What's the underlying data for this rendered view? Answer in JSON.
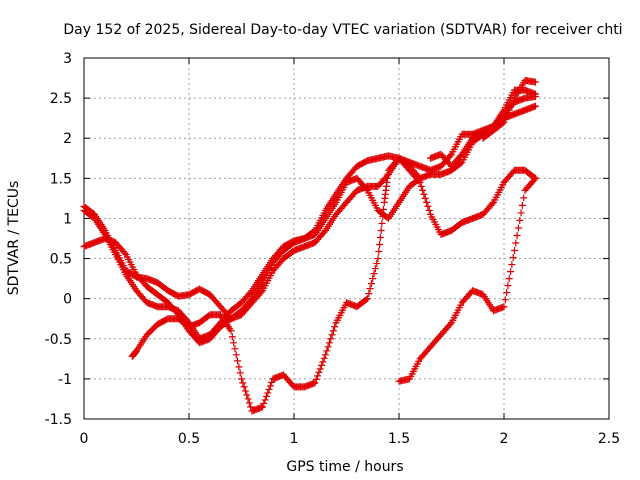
{
  "chart_data": {
    "type": "scatter",
    "title": "Day 152 of 2025, Sidereal Day-to-day VTEC variation (SDTVAR) for receiver chti",
    "xlabel": "GPS time / hours",
    "ylabel": "SDTVAR / TECUs",
    "xlim": [
      0,
      2.5
    ],
    "ylim": [
      -1.5,
      3
    ],
    "xticks": [
      "0",
      "0.5",
      "1",
      "1.5",
      "2",
      "2.5"
    ],
    "yticks": [
      "-1.5",
      "-1",
      "-0.5",
      "0",
      "0.5",
      "1",
      "1.5",
      "2",
      "2.5",
      "3"
    ],
    "grid": true,
    "marker": "+",
    "color": "#e00000",
    "series": [
      {
        "x": [
          0.0,
          0.05,
          0.1,
          0.15,
          0.2,
          0.25,
          0.3,
          0.35,
          0.4,
          0.45,
          0.5,
          0.55,
          0.6,
          0.65,
          0.7,
          0.75,
          0.8,
          0.85,
          0.9,
          0.95,
          1.0,
          1.05,
          1.1,
          1.15,
          1.2,
          1.25,
          1.3,
          1.35,
          1.4,
          1.45,
          1.5,
          1.55,
          1.6,
          1.65,
          1.7,
          1.75,
          1.8,
          1.85,
          1.9,
          1.95,
          2.0,
          2.05,
          2.1,
          2.15
        ],
        "y": [
          1.15,
          1.05,
          0.85,
          0.6,
          0.35,
          0.27,
          0.25,
          0.2,
          0.1,
          0.03,
          0.05,
          0.12,
          0.05,
          -0.1,
          -0.25,
          -0.15,
          0.0,
          0.2,
          0.45,
          0.6,
          0.7,
          0.75,
          0.85,
          1.1,
          1.3,
          1.5,
          1.65,
          1.72,
          1.75,
          1.78,
          1.75,
          1.7,
          1.65,
          1.6,
          1.65,
          1.8,
          2.05,
          2.05,
          2.1,
          2.15,
          2.25,
          2.3,
          2.35,
          2.4
        ]
      },
      {
        "x": [
          0.0,
          0.05,
          0.1,
          0.15,
          0.2,
          0.25,
          0.3,
          0.35,
          0.4,
          0.45,
          0.5,
          0.55,
          0.6,
          0.65,
          0.7,
          0.75,
          0.8,
          0.85,
          0.9,
          0.95,
          1.0,
          1.05,
          1.1,
          1.15,
          1.2,
          1.25,
          1.3,
          1.35,
          1.4,
          1.45,
          1.5,
          1.55,
          1.6,
          1.65,
          1.7,
          1.75,
          1.8,
          1.85,
          1.9,
          1.95,
          2.0,
          2.05,
          2.1,
          2.15
        ],
        "y": [
          1.1,
          1.0,
          0.8,
          0.55,
          0.3,
          0.1,
          -0.05,
          -0.1,
          -0.1,
          -0.15,
          -0.3,
          -0.5,
          -0.45,
          -0.3,
          -0.15,
          -0.05,
          0.1,
          0.3,
          0.5,
          0.65,
          0.72,
          0.75,
          0.8,
          1.0,
          1.2,
          1.45,
          1.5,
          1.35,
          1.1,
          1.0,
          1.2,
          1.4,
          1.5,
          1.55,
          1.55,
          1.6,
          1.7,
          1.95,
          2.05,
          2.15,
          2.35,
          2.6,
          2.6,
          2.55
        ]
      },
      {
        "x": [
          0.0,
          0.05,
          0.1,
          0.15,
          0.2,
          0.25,
          0.3,
          0.35,
          0.4,
          0.45,
          0.5,
          0.55,
          0.6,
          0.65,
          0.7,
          0.75,
          0.8,
          0.85,
          0.9,
          0.95,
          1.0,
          1.05,
          1.1,
          1.15,
          1.2,
          1.25,
          1.3,
          1.35,
          1.4,
          1.45,
          1.5,
          1.55,
          1.6,
          1.65,
          1.7,
          1.75,
          1.8,
          1.85,
          1.9,
          1.95,
          2.0,
          2.05,
          2.1,
          2.15
        ],
        "y": [
          0.65,
          0.7,
          0.75,
          0.7,
          0.55,
          0.3,
          0.15,
          0.05,
          -0.05,
          -0.2,
          -0.4,
          -0.55,
          -0.5,
          -0.35,
          -0.25,
          -0.2,
          -0.05,
          0.1,
          0.35,
          0.5,
          0.6,
          0.65,
          0.7,
          0.85,
          1.05,
          1.2,
          1.35,
          1.4,
          1.4,
          1.55,
          1.75,
          1.6,
          1.45,
          1.05,
          0.8,
          0.85,
          0.95,
          1.0,
          1.05,
          1.2,
          1.45,
          1.6,
          1.6,
          1.5
        ]
      },
      {
        "x": [
          0.23,
          0.25,
          0.3,
          0.35,
          0.4,
          0.45,
          0.5,
          0.55,
          0.6,
          0.65,
          0.7,
          0.75,
          0.8,
          0.85,
          0.9,
          0.95,
          1.0,
          1.05,
          1.1,
          1.15,
          1.2,
          1.25,
          1.3,
          1.35,
          1.4,
          1.43,
          1.45,
          1.5,
          1.55,
          1.6
        ],
        "y": [
          -0.72,
          -0.65,
          -0.45,
          -0.32,
          -0.25,
          -0.25,
          -0.35,
          -0.3,
          -0.2,
          -0.2,
          -0.4,
          -1.0,
          -1.4,
          -1.35,
          -1.0,
          -0.95,
          -1.1,
          -1.1,
          -1.05,
          -0.7,
          -0.3,
          -0.05,
          -0.1,
          0.0,
          0.5,
          1.2,
          1.6,
          1.75,
          1.65,
          1.5
        ]
      },
      {
        "x": [
          1.5,
          1.55,
          1.6,
          1.65,
          1.7,
          1.75,
          1.8,
          1.85,
          1.9,
          1.95,
          2.0,
          2.05,
          2.1,
          2.15
        ],
        "y": [
          -1.03,
          -1.0,
          -0.75,
          -0.6,
          -0.45,
          -0.3,
          -0.05,
          0.1,
          0.05,
          -0.15,
          -0.1,
          0.6,
          1.35,
          1.5
        ]
      },
      {
        "x": [
          1.65,
          1.7,
          1.75,
          1.8,
          1.85,
          1.9,
          1.95,
          2.0,
          2.05,
          2.1,
          2.15
        ],
        "y": [
          1.75,
          1.8,
          1.65,
          1.8,
          2.0,
          2.05,
          2.15,
          2.3,
          2.45,
          2.5,
          2.52
        ]
      },
      {
        "x": [
          1.9,
          1.95,
          2.0,
          2.05,
          2.1,
          2.15
        ],
        "y": [
          2.0,
          2.1,
          2.2,
          2.5,
          2.72,
          2.7
        ]
      }
    ]
  }
}
